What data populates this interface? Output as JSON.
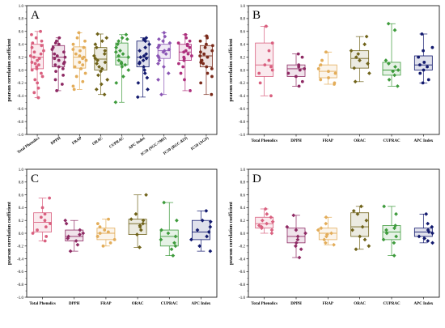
{
  "chart_data": [
    {
      "panel": "A",
      "type": "box-scatter",
      "ylabel": "pearson correlation coefficient",
      "ylim": [
        -1.0,
        1.0
      ],
      "yticks": [
        1.0,
        0.8,
        0.6,
        0.4,
        0.2,
        0.0,
        -0.2,
        -0.4,
        -0.6,
        -0.8,
        -1.0
      ],
      "grid": false,
      "categories": [
        "Total Phenolics",
        "DPPH",
        "FRAP",
        "ORAC",
        "CUPRAC",
        "APC Index",
        "IC50 (SGC-7901)",
        "IC50 (BGC-823)",
        "IC50 (AGS)"
      ],
      "colors": [
        "#d9607f",
        "#8e2a64",
        "#e3ad5a",
        "#70631a",
        "#3e9b3c",
        "#12196e",
        "#8a55b4",
        "#ad2f7c",
        "#7a2a1a"
      ],
      "markers": [
        "circle",
        "circle",
        "circle",
        "diamond",
        "diamond",
        "diamond",
        "diamond",
        "circle",
        "circle"
      ],
      "boxes": [
        {
          "q1": 0.02,
          "median": 0.2,
          "q3": 0.4,
          "min": -0.43,
          "max": 0.6
        },
        {
          "q1": 0.05,
          "median": 0.2,
          "q3": 0.38,
          "min": -0.32,
          "max": 0.5
        },
        {
          "q1": 0.03,
          "median": 0.2,
          "q3": 0.36,
          "min": -0.3,
          "max": 0.58
        },
        {
          "q1": 0.0,
          "median": 0.17,
          "q3": 0.35,
          "min": -0.38,
          "max": 0.56
        },
        {
          "q1": 0.08,
          "median": 0.2,
          "q3": 0.42,
          "min": -0.5,
          "max": 0.55
        },
        {
          "q1": 0.05,
          "median": 0.2,
          "q3": 0.45,
          "min": -0.42,
          "max": 0.5
        },
        {
          "q1": 0.18,
          "median": 0.3,
          "q3": 0.4,
          "min": -0.38,
          "max": 0.58
        },
        {
          "q1": 0.15,
          "median": 0.28,
          "q3": 0.4,
          "min": -0.32,
          "max": 0.55
        },
        {
          "q1": 0.05,
          "median": 0.22,
          "q3": 0.38,
          "min": -0.38,
          "max": 0.53
        }
      ],
      "points": [
        [
          0.6,
          0.55,
          0.5,
          0.45,
          0.42,
          0.38,
          0.35,
          0.3,
          0.28,
          0.25,
          0.22,
          0.2,
          0.18,
          0.15,
          0.12,
          0.1,
          0.08,
          0.05,
          0.02,
          0.0,
          -0.05,
          -0.1,
          -0.15,
          -0.2,
          -0.28,
          -0.35,
          -0.43
        ],
        [
          0.5,
          0.45,
          0.42,
          0.4,
          0.35,
          0.32,
          0.28,
          0.25,
          0.22,
          0.2,
          0.18,
          0.15,
          0.12,
          0.1,
          0.08,
          0.05,
          0.02,
          -0.02,
          -0.08,
          -0.15,
          -0.22,
          -0.32
        ],
        [
          0.58,
          0.5,
          0.45,
          0.4,
          0.35,
          0.32,
          0.3,
          0.25,
          0.22,
          0.2,
          0.18,
          0.15,
          0.12,
          0.08,
          0.05,
          0.02,
          -0.05,
          -0.1,
          -0.18,
          -0.25,
          -0.3
        ],
        [
          0.56,
          0.5,
          0.45,
          0.4,
          0.35,
          0.3,
          0.25,
          0.22,
          0.18,
          0.15,
          0.12,
          0.1,
          0.05,
          0.02,
          -0.02,
          -0.08,
          -0.15,
          -0.22,
          -0.3,
          -0.38
        ],
        [
          0.55,
          0.5,
          0.48,
          0.45,
          0.4,
          0.35,
          0.3,
          0.28,
          0.25,
          0.22,
          0.2,
          0.15,
          0.12,
          0.1,
          0.08,
          0.05,
          0.0,
          -0.1,
          -0.2,
          -0.5
        ],
        [
          0.5,
          0.48,
          0.45,
          0.4,
          0.35,
          0.3,
          0.25,
          0.22,
          0.2,
          0.18,
          0.15,
          0.12,
          0.1,
          0.05,
          0.0,
          -0.05,
          -0.12,
          -0.2,
          -0.3,
          -0.42
        ],
        [
          0.58,
          0.52,
          0.48,
          0.45,
          0.42,
          0.38,
          0.35,
          0.32,
          0.3,
          0.28,
          0.25,
          0.22,
          0.2,
          0.15,
          0.1,
          0.05,
          -0.05,
          -0.15,
          -0.38
        ],
        [
          0.55,
          0.5,
          0.45,
          0.42,
          0.4,
          0.38,
          0.35,
          0.3,
          0.28,
          0.25,
          0.22,
          0.2,
          0.18,
          0.15,
          0.1,
          0.05,
          -0.05,
          -0.15,
          -0.32
        ],
        [
          0.53,
          0.5,
          0.45,
          0.4,
          0.38,
          0.35,
          0.3,
          0.28,
          0.25,
          0.22,
          0.2,
          0.15,
          0.12,
          0.1,
          0.05,
          0.02,
          -0.05,
          -0.1,
          -0.2,
          -0.38
        ]
      ]
    },
    {
      "panel": "B",
      "type": "box-scatter",
      "ylabel": "pearson correlation coefficient",
      "ylim": [
        -1.0,
        1.0
      ],
      "yticks": [
        1.0,
        0.8,
        0.6,
        0.4,
        0.2,
        0.0,
        -0.2,
        -0.4,
        -0.6,
        -0.8,
        -1.0
      ],
      "grid": false,
      "categories": [
        "Total Phenolics",
        "DPPH",
        "FRAP",
        "ORAC",
        "CUPRAC",
        "APC Index"
      ],
      "colors": [
        "#d9607f",
        "#8e2a64",
        "#e3ad5a",
        "#70631a",
        "#3e9b3c",
        "#12196e"
      ],
      "markers": [
        "circle",
        "circle",
        "circle",
        "diamond",
        "diamond",
        "circle"
      ],
      "boxes": [
        {
          "q1": -0.1,
          "median": 0.08,
          "q3": 0.42,
          "min": -0.4,
          "max": 0.68
        },
        {
          "q1": -0.1,
          "median": 0.02,
          "q3": 0.08,
          "min": -0.25,
          "max": 0.25
        },
        {
          "q1": -0.12,
          "median": -0.02,
          "q3": 0.08,
          "min": -0.22,
          "max": 0.28
        },
        {
          "q1": 0.03,
          "median": 0.18,
          "q3": 0.3,
          "min": -0.18,
          "max": 0.52
        },
        {
          "q1": -0.08,
          "median": 0.0,
          "q3": 0.12,
          "min": -0.25,
          "max": 0.72
        },
        {
          "q1": 0.0,
          "median": 0.08,
          "q3": 0.22,
          "min": -0.2,
          "max": 0.56
        }
      ],
      "points": [
        [
          0.68,
          0.42,
          0.3,
          0.15,
          0.08,
          0.05,
          0.0,
          -0.05,
          -0.2,
          -0.4
        ],
        [
          0.25,
          0.2,
          0.08,
          0.05,
          0.02,
          0.0,
          -0.05,
          -0.1,
          -0.18,
          -0.25
        ],
        [
          0.28,
          0.15,
          0.08,
          0.02,
          -0.02,
          -0.05,
          -0.12,
          -0.15,
          -0.2,
          -0.22
        ],
        [
          0.52,
          0.4,
          0.3,
          0.25,
          0.2,
          0.15,
          0.1,
          0.03,
          -0.05,
          -0.18
        ],
        [
          0.72,
          0.62,
          0.15,
          0.1,
          0.05,
          0.0,
          -0.02,
          -0.08,
          -0.15,
          -0.25
        ],
        [
          0.56,
          0.35,
          0.3,
          0.2,
          0.12,
          0.08,
          0.05,
          0.0,
          -0.05,
          -0.15,
          -0.2
        ]
      ]
    },
    {
      "panel": "C",
      "type": "box-scatter",
      "ylabel": "pearson correlation coefficient",
      "ylim": [
        -1.0,
        1.0
      ],
      "yticks": [
        1.0,
        0.8,
        0.6,
        0.4,
        0.2,
        0.0,
        -0.2,
        -0.4,
        -0.6,
        -0.8,
        -1.0
      ],
      "grid": false,
      "categories": [
        "Total Phenolics",
        "DPPH",
        "FRAP",
        "ORAC",
        "CUPRAC",
        "APC Index"
      ],
      "colors": [
        "#d9607f",
        "#8e2a64",
        "#e3ad5a",
        "#70631a",
        "#3e9b3c",
        "#12196e"
      ],
      "markers": [
        "circle",
        "diamond",
        "circle",
        "diamond",
        "diamond",
        "diamond"
      ],
      "boxes": [
        {
          "q1": 0.02,
          "median": 0.17,
          "q3": 0.32,
          "min": -0.12,
          "max": 0.55
        },
        {
          "q1": -0.12,
          "median": -0.05,
          "q3": 0.05,
          "min": -0.28,
          "max": 0.2
        },
        {
          "q1": -0.1,
          "median": 0.0,
          "q3": 0.08,
          "min": -0.2,
          "max": 0.22
        },
        {
          "q1": -0.02,
          "median": 0.15,
          "q3": 0.22,
          "min": -0.22,
          "max": 0.6
        },
        {
          "q1": -0.2,
          "median": -0.05,
          "q3": 0.05,
          "min": -0.35,
          "max": 0.48
        },
        {
          "q1": -0.1,
          "median": 0.02,
          "q3": 0.2,
          "min": -0.28,
          "max": 0.35
        }
      ],
      "points": [
        [
          0.55,
          0.4,
          0.3,
          0.25,
          0.2,
          0.15,
          0.1,
          0.05,
          0.0,
          -0.05,
          -0.12
        ],
        [
          0.2,
          0.15,
          0.05,
          0.0,
          -0.02,
          -0.05,
          -0.08,
          -0.12,
          -0.18,
          -0.28
        ],
        [
          0.22,
          0.15,
          0.1,
          0.05,
          0.02,
          0.0,
          -0.05,
          -0.1,
          -0.15,
          -0.2
        ],
        [
          0.6,
          0.3,
          0.22,
          0.2,
          0.15,
          0.12,
          0.1,
          0.05,
          -0.02,
          -0.22
        ],
        [
          0.48,
          0.2,
          0.05,
          0.0,
          -0.05,
          -0.1,
          -0.15,
          -0.2,
          -0.25,
          -0.35
        ],
        [
          0.35,
          0.2,
          0.18,
          0.1,
          0.05,
          0.02,
          -0.05,
          -0.1,
          -0.2,
          -0.28
        ]
      ]
    },
    {
      "panel": "D",
      "type": "box-scatter",
      "ylabel": "pearson correlation coefficient",
      "ylim": [
        -1.0,
        1.0
      ],
      "yticks": [
        1.0,
        0.8,
        0.6,
        0.4,
        0.2,
        0.0,
        -0.2,
        -0.4,
        -0.6,
        -0.8,
        -1.0
      ],
      "grid": false,
      "categories": [
        "Total Phenolics",
        "DPPH",
        "FRAP",
        "ORAC",
        "CUPRAC",
        "APC Index"
      ],
      "colors": [
        "#d9607f",
        "#8e2a64",
        "#e3ad5a",
        "#70631a",
        "#3e9b3c",
        "#12196e"
      ],
      "markers": [
        "diamond",
        "diamond",
        "diamond",
        "diamond",
        "diamond",
        "diamond"
      ],
      "boxes": [
        {
          "q1": 0.08,
          "median": 0.15,
          "q3": 0.25,
          "min": 0.0,
          "max": 0.38
        },
        {
          "q1": -0.15,
          "median": -0.05,
          "q3": 0.08,
          "min": -0.38,
          "max": 0.28
        },
        {
          "q1": -0.1,
          "median": 0.0,
          "q3": 0.08,
          "min": -0.18,
          "max": 0.25
        },
        {
          "q1": -0.05,
          "median": 0.1,
          "q3": 0.32,
          "min": -0.25,
          "max": 0.42
        },
        {
          "q1": -0.1,
          "median": 0.02,
          "q3": 0.12,
          "min": -0.35,
          "max": 0.42
        },
        {
          "q1": -0.05,
          "median": 0.02,
          "q3": 0.08,
          "min": -0.15,
          "max": 0.3
        }
      ],
      "points": [
        [
          0.38,
          0.3,
          0.25,
          0.2,
          0.18,
          0.15,
          0.12,
          0.1,
          0.08,
          0.05,
          0.0
        ],
        [
          0.28,
          0.1,
          0.05,
          0.0,
          -0.05,
          -0.1,
          -0.15,
          -0.2,
          -0.25,
          -0.38
        ],
        [
          0.25,
          0.15,
          0.08,
          0.05,
          0.0,
          -0.02,
          -0.05,
          -0.1,
          -0.15,
          -0.18
        ],
        [
          0.42,
          0.35,
          0.3,
          0.2,
          0.1,
          0.05,
          -0.05,
          -0.1,
          -0.2,
          -0.25
        ],
        [
          0.42,
          0.3,
          0.12,
          0.08,
          0.05,
          0.0,
          -0.05,
          -0.1,
          -0.15,
          -0.35
        ],
        [
          0.3,
          0.15,
          0.1,
          0.05,
          0.02,
          0.0,
          -0.05,
          -0.08,
          -0.12,
          -0.15
        ]
      ]
    }
  ]
}
